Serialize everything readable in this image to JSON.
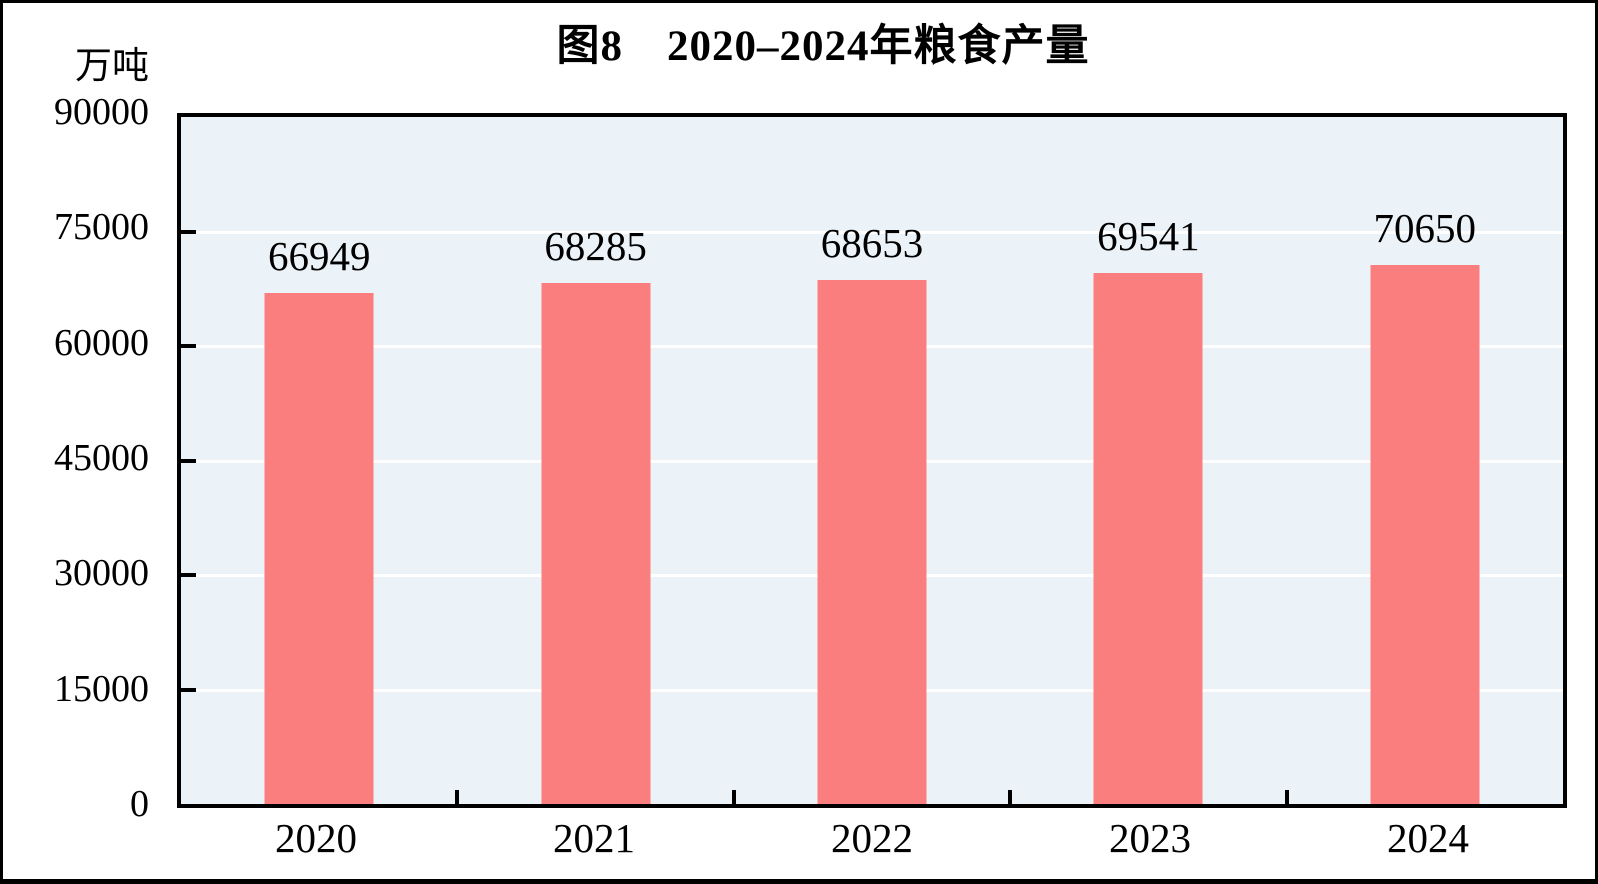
{
  "figure": {
    "title": "图8　2020–2024年粮食产量",
    "unit_label": "万吨"
  },
  "chart_data": {
    "type": "bar",
    "title": "图8　2020–2024年粮食产量",
    "categories": [
      "2020",
      "2021",
      "2022",
      "2023",
      "2024"
    ],
    "values": [
      66949,
      68285,
      68653,
      69541,
      70650
    ],
    "xlabel": "",
    "ylabel": "万吨",
    "ylim": [
      0,
      90000
    ],
    "yticks": [
      0,
      15000,
      30000,
      45000,
      60000,
      75000,
      90000
    ],
    "grid": "horizontal-white",
    "legend": "none",
    "data_labels": "outside-end-above-bar",
    "colors": {
      "bar": "#FB7E7E",
      "plot_background": "#ECF3F8",
      "gridline": "#FFFFFF",
      "axis": "#000000",
      "text": "#000000"
    }
  }
}
